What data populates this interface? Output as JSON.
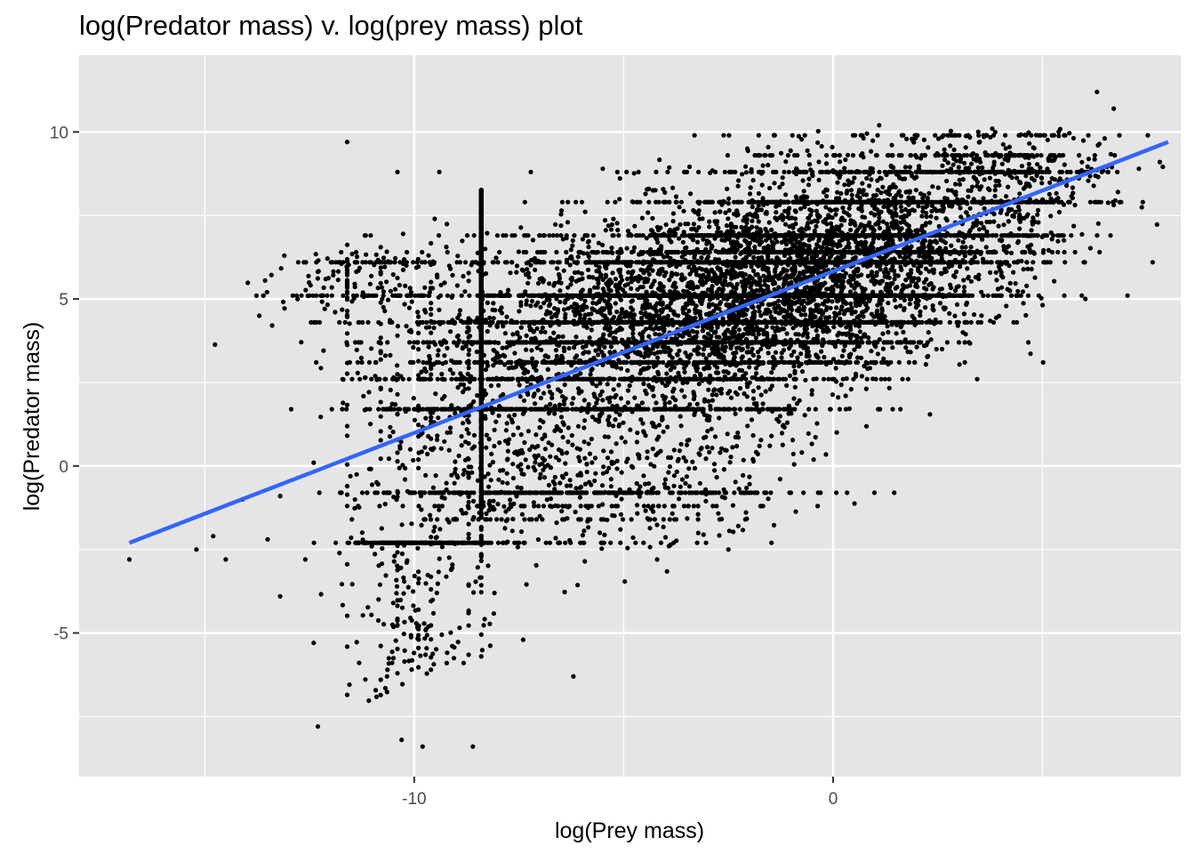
{
  "chart_data": {
    "type": "scatter",
    "title": "log(Predator mass) v. log(prey mass) plot",
    "xlabel": "log(Prey mass)",
    "ylabel": "log(Predator mass)",
    "xlim": [
      -18.0,
      8.3
    ],
    "ylim": [
      -9.3,
      12.3
    ],
    "x_ticks": [
      -10,
      0
    ],
    "y_ticks": [
      -5,
      0,
      5,
      10
    ],
    "x_tick_labels": [
      "-10",
      "0"
    ],
    "y_tick_labels": [
      "-5",
      "0",
      "5",
      "10"
    ],
    "grid": true,
    "legend": "none",
    "colors": {
      "panel_background": "#e5e5e5",
      "grid": "#ffffff",
      "points": "#000000",
      "fit_line": "#3366ff"
    },
    "fit_line": {
      "name": "",
      "x": [
        -16.8,
        8.0
      ],
      "y": [
        -2.3,
        9.7
      ]
    },
    "series": [
      {
        "name": "",
        "seed": 20240611,
        "clusters": [
          {
            "n": 5200,
            "cx": -1.5,
            "cy": 5.4,
            "sx": 2.4,
            "sy": 1.5,
            "rot": 0.5
          },
          {
            "n": 2600,
            "cx": -5.0,
            "cy": 4.5,
            "sx": 2.6,
            "sy": 1.3,
            "rot": 0.15
          },
          {
            "n": 2000,
            "cx": 1.8,
            "cy": 6.6,
            "sx": 2.0,
            "sy": 1.3,
            "rot": 0.55
          },
          {
            "n": 1100,
            "cx": -8.0,
            "cy": 1.2,
            "sx": 1.8,
            "sy": 2.0,
            "rot": 0.3
          },
          {
            "n": 700,
            "cx": -4.5,
            "cy": 0.0,
            "sx": 2.4,
            "sy": 1.2,
            "rot": 0.2
          },
          {
            "n": 450,
            "cx": -10.0,
            "cy": -5.2,
            "sx": 0.8,
            "sy": 1.8,
            "rot": 0.0
          },
          {
            "n": 380,
            "cx": 4.5,
            "cy": 8.4,
            "sx": 1.2,
            "sy": 0.9,
            "rot": 0.5
          },
          {
            "n": 200,
            "cx": -11.5,
            "cy": 5.6,
            "sx": 1.2,
            "sy": 0.6,
            "rot": 0.0
          }
        ],
        "bands_y": [
          9.9,
          9.3,
          8.8,
          7.9,
          6.9,
          6.4,
          6.1,
          5.1,
          4.3,
          3.7,
          3.1,
          2.6,
          1.7,
          -0.8,
          -1.2,
          -1.6,
          -2.3
        ],
        "columns_x": [
          -11.6,
          -10.8,
          -10.4,
          -9.9,
          -9.6,
          -8.7,
          -8.4
        ],
        "outliers": [
          [
            -16.8,
            -2.8
          ],
          [
            -14.5,
            -2.8
          ],
          [
            -14.1,
            -1.0
          ],
          [
            -13.5,
            -2.2
          ],
          [
            -13.2,
            -0.9
          ],
          [
            -12.6,
            -2.8
          ],
          [
            -12.4,
            0.1
          ],
          [
            -11.6,
            9.7
          ],
          [
            -10.4,
            8.8
          ],
          [
            -9.4,
            8.8
          ],
          [
            -12.3,
            -7.8
          ],
          [
            -10.3,
            -8.2
          ],
          [
            -8.6,
            -8.4
          ],
          [
            -9.8,
            -8.4
          ],
          [
            6.3,
            11.2
          ],
          [
            6.7,
            10.7
          ],
          [
            -13.1,
            6.3
          ],
          [
            -13.6,
            5.1
          ],
          [
            -13.7,
            4.5
          ],
          [
            -13.2,
            -3.9
          ],
          [
            -14.8,
            -2.1
          ],
          [
            -15.2,
            -2.5
          ],
          [
            -12.9,
            5.1
          ],
          [
            -4.2,
            -2.8
          ],
          [
            -2.5,
            -2.5
          ],
          [
            -6.2,
            -6.3
          ],
          [
            -7.4,
            -5.2
          ],
          [
            -3.8,
            -0.6
          ],
          [
            -1.2,
            1.2
          ],
          [
            0.3,
            2.1
          ],
          [
            2.6,
            3.5
          ],
          [
            3.1,
            4.0
          ],
          [
            4.3,
            5.8
          ],
          [
            5.4,
            7.6
          ],
          [
            7.3,
            8.9
          ],
          [
            6.8,
            8.2
          ],
          [
            7.8,
            9.1
          ],
          [
            1.1,
            10.2
          ],
          [
            3.8,
            10.1
          ],
          [
            -5.5,
            8.9
          ]
        ]
      }
    ]
  }
}
